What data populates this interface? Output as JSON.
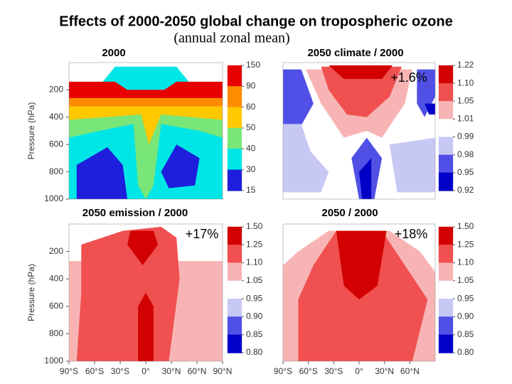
{
  "page": {
    "title": "Effects of 2000-2050 global change on tropospheric ozone",
    "subtitle": "(annual zonal mean)"
  },
  "chart_data": [
    {
      "type": "contour",
      "title": "2000",
      "ylabel": "Pressure (hPa)",
      "ylim": [
        0,
        1000
      ],
      "yreverse": true,
      "yticks": [
        200,
        400,
        600,
        800,
        1000
      ],
      "colorbar": {
        "ticks": [
          150,
          90,
          60,
          50,
          40,
          30,
          15
        ],
        "colors": [
          "#e60000",
          "#ff8c00",
          "#ffc800",
          "#78e678",
          "#00e6e6",
          "#1e1edc"
        ]
      }
    },
    {
      "type": "contour",
      "title": "2050 climate / 2000",
      "annotation": "+1.6%",
      "colorbar": {
        "ticks": [
          1.22,
          {
            "value": 1.1,
            "label": "1.10"
          },
          1.05,
          1.01,
          0.99,
          0.98,
          0.95,
          0.92
        ],
        "colors": [
          "#d20000",
          "#f05050",
          "#f8b4b4",
          "#ffffff",
          "#c8c8f5",
          "#5050e6",
          "#0000c8"
        ]
      }
    },
    {
      "type": "contour",
      "title": "2050 emission / 2000",
      "annotation": "+17%",
      "ylabel": "Pressure (hPa)",
      "ylim": [
        0,
        1000
      ],
      "yreverse": true,
      "yticks": [
        200,
        400,
        600,
        800,
        1000
      ],
      "xlim": [
        -90,
        90
      ],
      "xticks": [
        {
          "value": -90,
          "label": "90°S"
        },
        {
          "value": -60,
          "label": "60°S"
        },
        {
          "value": -30,
          "label": "30°S"
        },
        {
          "value": 0,
          "label": "0°"
        },
        {
          "value": 30,
          "label": "30°N"
        },
        {
          "value": 60,
          "label": "60°N"
        },
        {
          "value": 90,
          "label": "90°N"
        }
      ],
      "colorbar": {
        "ticks": [
          {
            "value": 1.5,
            "label": "1.50"
          },
          1.25,
          {
            "value": 1.1,
            "label": "1.10"
          },
          1.05,
          0.95,
          {
            "value": 0.9,
            "label": "0.90"
          },
          0.85,
          {
            "value": 0.8,
            "label": "0.80"
          }
        ],
        "colors": [
          "#d20000",
          "#f05050",
          "#f8b4b4",
          "#ffffff",
          "#c8c8f5",
          "#5050e6",
          "#0000c8"
        ]
      }
    },
    {
      "type": "contour",
      "title": "2050 / 2000",
      "annotation": "+18%",
      "xlim": [
        -90,
        90
      ],
      "xticks": [
        {
          "value": -90,
          "label": "90°S"
        },
        {
          "value": -60,
          "label": "60°S"
        },
        {
          "value": -30,
          "label": "30°S"
        },
        {
          "value": 0,
          "label": "0°"
        },
        {
          "value": 30,
          "label": "30°N"
        },
        {
          "value": 60,
          "label": "60°N"
        }
      ],
      "colorbar": {
        "ticks": [
          {
            "value": 1.5,
            "label": "1.50"
          },
          1.25,
          {
            "value": 1.1,
            "label": "1.10"
          },
          1.05,
          0.95,
          {
            "value": 0.9,
            "label": "0.90"
          },
          0.85,
          {
            "value": 0.8,
            "label": "0.80"
          }
        ],
        "colors": [
          "#d20000",
          "#f05050",
          "#f8b4b4",
          "#ffffff",
          "#c8c8f5",
          "#5050e6",
          "#0000c8"
        ]
      }
    }
  ]
}
